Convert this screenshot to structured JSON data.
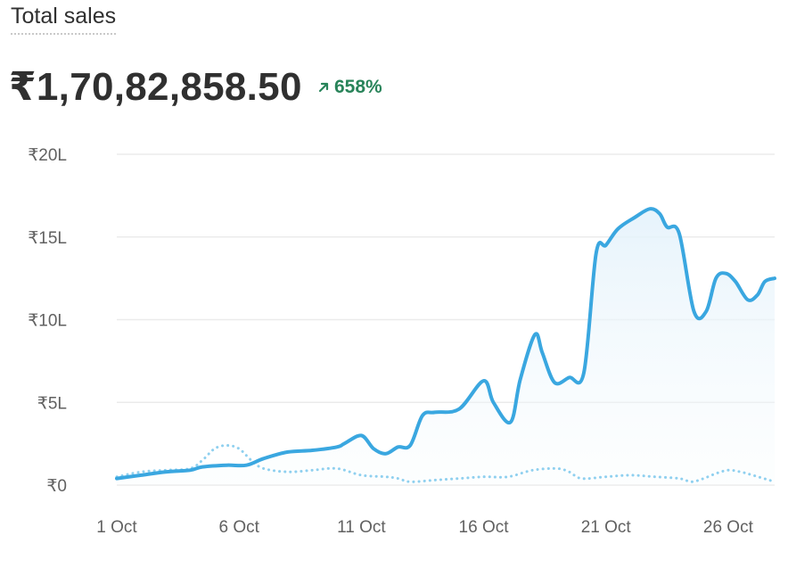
{
  "header": {
    "title": "Total sales",
    "total_value": "₹1,70,82,858.50",
    "change_text": "658%",
    "change_icon": "arrow-up-right-icon"
  },
  "colors": {
    "primary_line": "#3aa7e0",
    "comparison_line": "#8fd0ef",
    "change_positive": "#29845a",
    "grid": "#ebebeb"
  },
  "chart_data": {
    "type": "line",
    "x_unit": "day of October",
    "ylim": [
      0,
      2000000
    ],
    "y_ticks": [
      {
        "value": 0,
        "label": "₹0"
      },
      {
        "value": 500000,
        "label": "₹5L"
      },
      {
        "value": 1000000,
        "label": "₹10L"
      },
      {
        "value": 1500000,
        "label": "₹15L"
      },
      {
        "value": 2000000,
        "label": "₹20L"
      }
    ],
    "x_ticks": [
      {
        "value": 1,
        "label": "1 Oct"
      },
      {
        "value": 6,
        "label": "6 Oct"
      },
      {
        "value": 11,
        "label": "11 Oct"
      },
      {
        "value": 16,
        "label": "16 Oct"
      },
      {
        "value": 21,
        "label": "21 Oct"
      },
      {
        "value": 26,
        "label": "26 Oct"
      }
    ],
    "grid": true,
    "series": [
      {
        "style": "solid",
        "area_fill": true,
        "points": [
          [
            1,
            40000
          ],
          [
            2,
            60000
          ],
          [
            3,
            80000
          ],
          [
            4,
            90000
          ],
          [
            4.5,
            110000
          ],
          [
            5.5,
            120000
          ],
          [
            6.3,
            120000
          ],
          [
            7,
            160000
          ],
          [
            8,
            200000
          ],
          [
            9,
            210000
          ],
          [
            10,
            230000
          ],
          [
            10.3,
            250000
          ],
          [
            11,
            300000
          ],
          [
            11.5,
            220000
          ],
          [
            12,
            190000
          ],
          [
            12.5,
            230000
          ],
          [
            13,
            240000
          ],
          [
            13.5,
            420000
          ],
          [
            14,
            440000
          ],
          [
            15,
            460000
          ],
          [
            16,
            630000
          ],
          [
            16.4,
            500000
          ],
          [
            17.1,
            380000
          ],
          [
            17.5,
            640000
          ],
          [
            18.1,
            910000
          ],
          [
            18.4,
            800000
          ],
          [
            18.9,
            620000
          ],
          [
            19.5,
            650000
          ],
          [
            20.1,
            680000
          ],
          [
            20.6,
            1400000
          ],
          [
            21.0,
            1450000
          ],
          [
            21.5,
            1550000
          ],
          [
            22.2,
            1620000
          ],
          [
            22.8,
            1670000
          ],
          [
            23.2,
            1640000
          ],
          [
            23.5,
            1560000
          ],
          [
            24.0,
            1520000
          ],
          [
            24.6,
            1050000
          ],
          [
            25.1,
            1050000
          ],
          [
            25.5,
            1250000
          ],
          [
            25.9,
            1280000
          ],
          [
            26.3,
            1230000
          ],
          [
            26.8,
            1120000
          ],
          [
            27.2,
            1150000
          ],
          [
            27.5,
            1230000
          ],
          [
            27.9,
            1250000
          ]
        ]
      },
      {
        "style": "dotted",
        "area_fill": false,
        "points": [
          [
            1,
            50000
          ],
          [
            2,
            80000
          ],
          [
            3,
            90000
          ],
          [
            4,
            100000
          ],
          [
            4.5,
            150000
          ],
          [
            5,
            220000
          ],
          [
            5.5,
            240000
          ],
          [
            6,
            220000
          ],
          [
            6.5,
            150000
          ],
          [
            7,
            100000
          ],
          [
            8,
            80000
          ],
          [
            9,
            90000
          ],
          [
            10,
            100000
          ],
          [
            11,
            60000
          ],
          [
            12,
            50000
          ],
          [
            12.5,
            40000
          ],
          [
            13,
            20000
          ],
          [
            14,
            30000
          ],
          [
            15,
            40000
          ],
          [
            16,
            50000
          ],
          [
            17,
            50000
          ],
          [
            18,
            90000
          ],
          [
            19,
            100000
          ],
          [
            19.5,
            80000
          ],
          [
            20,
            40000
          ],
          [
            21,
            50000
          ],
          [
            22,
            60000
          ],
          [
            23,
            50000
          ],
          [
            24,
            40000
          ],
          [
            24.5,
            20000
          ],
          [
            25,
            40000
          ],
          [
            25.5,
            70000
          ],
          [
            26,
            90000
          ],
          [
            26.5,
            80000
          ],
          [
            27,
            60000
          ],
          [
            27.9,
            20000
          ]
        ]
      }
    ]
  }
}
